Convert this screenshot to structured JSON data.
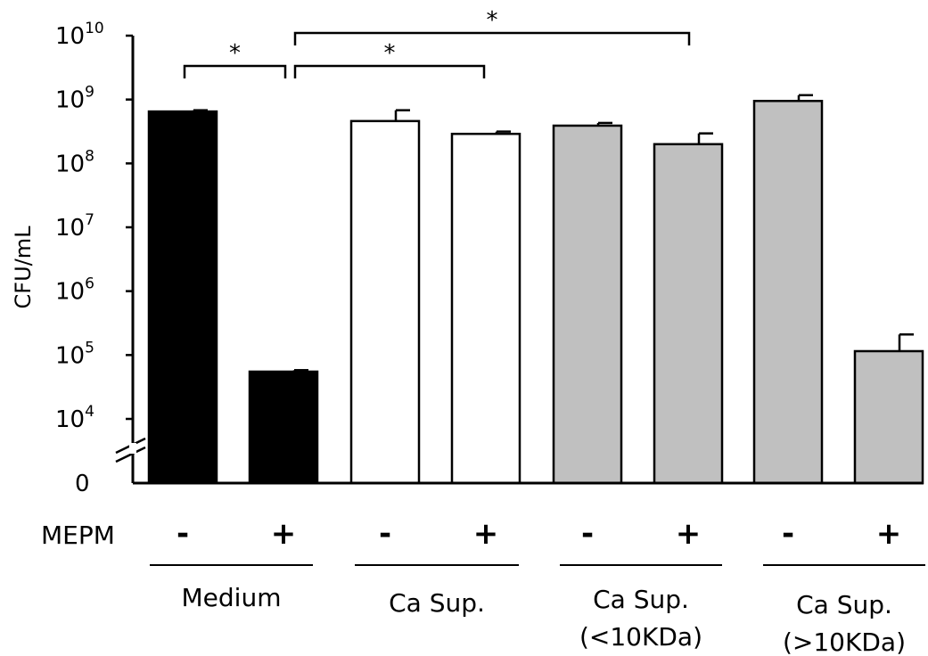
{
  "chart_data": {
    "type": "bar",
    "ylabel": "CFU/mL",
    "yscale": "log",
    "ylim": [
      10000,
      10000000000
    ],
    "y_ticks": [
      {
        "label": "0",
        "base": "0",
        "exp": ""
      },
      {
        "label": "10^4",
        "base": "10",
        "exp": "4"
      },
      {
        "label": "10^5",
        "base": "10",
        "exp": "5"
      },
      {
        "label": "10^6",
        "base": "10",
        "exp": "6"
      },
      {
        "label": "10^7",
        "base": "10",
        "exp": "7"
      },
      {
        "label": "10^8",
        "base": "10",
        "exp": "8"
      },
      {
        "label": "10^9",
        "base": "10",
        "exp": "9"
      },
      {
        "label": "10^10",
        "base": "10",
        "exp": "10"
      }
    ],
    "axis_break": true,
    "mepm_label": "MEPM",
    "groups": [
      {
        "name": "Medium",
        "subname": "",
        "color": "#000000"
      },
      {
        "name": "Ca Sup.",
        "subname": "",
        "color": "#ffffff"
      },
      {
        "name": "Ca Sup.",
        "subname": "(<10KDa)",
        "color": "#c0c0c0"
      },
      {
        "name": "Ca Sup.",
        "subname": "(>10KDa)",
        "color": "#c0c0c0"
      }
    ],
    "bars": [
      {
        "group": 0,
        "mepm": "-",
        "value": 650000000,
        "error": 30000000
      },
      {
        "group": 0,
        "mepm": "+",
        "value": 55000,
        "error": 3000
      },
      {
        "group": 1,
        "mepm": "-",
        "value": 460000000,
        "error": 220000000
      },
      {
        "group": 1,
        "mepm": "+",
        "value": 290000000,
        "error": 25000000
      },
      {
        "group": 2,
        "mepm": "-",
        "value": 390000000,
        "error": 40000000
      },
      {
        "group": 2,
        "mepm": "+",
        "value": 200000000,
        "error": 95000000
      },
      {
        "group": 3,
        "mepm": "-",
        "value": 950000000,
        "error": 220000000
      },
      {
        "group": 3,
        "mepm": "+",
        "value": 115000,
        "error": 95000
      }
    ],
    "significance": [
      {
        "from": 0,
        "to": 1,
        "label": "*"
      },
      {
        "from": 1,
        "to": 3,
        "label": "*"
      },
      {
        "from": 1,
        "to": 5,
        "label": "*"
      }
    ]
  }
}
